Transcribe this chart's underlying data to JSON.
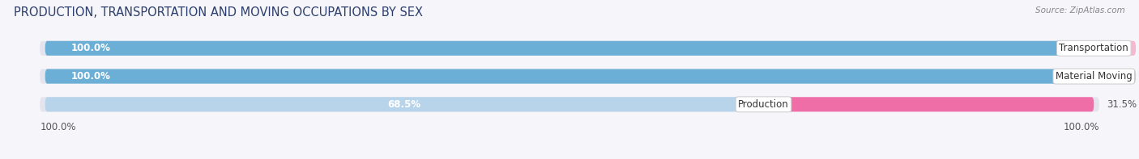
{
  "title": "PRODUCTION, TRANSPORTATION AND MOVING OCCUPATIONS BY SEX",
  "source": "Source: ZipAtlas.com",
  "categories": [
    "Transportation",
    "Material Moving",
    "Production"
  ],
  "male_values": [
    100.0,
    100.0,
    68.5
  ],
  "female_values": [
    0.0,
    0.0,
    31.5
  ],
  "male_color_full": "#6baed6",
  "male_color_light": "#b8d4ea",
  "female_color_full": "#f06ea8",
  "female_color_light": "#f5b8d0",
  "bar_bg_color": "#e4e4ee",
  "title_color": "#2c3e6b",
  "source_color": "#888888",
  "label_color": "#444444",
  "value_color_white": "#ffffff",
  "value_color_dark": "#555555",
  "bg_color": "#f5f5fa",
  "figsize": [
    14.06,
    1.97
  ],
  "dpi": 100,
  "title_fontsize": 10.5,
  "source_fontsize": 7.5,
  "label_fontsize": 8.5,
  "value_fontsize": 8.5,
  "tick_fontsize": 8.5,
  "x_left_label": "100.0%",
  "x_right_label": "100.0%"
}
